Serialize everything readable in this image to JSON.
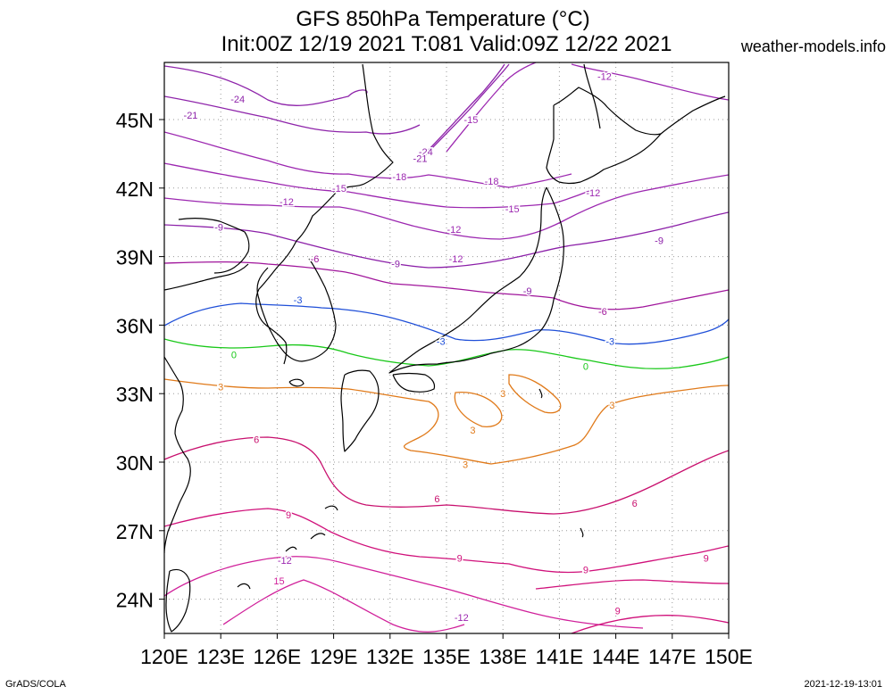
{
  "title": {
    "line1": "GFS 850hPa Temperature (°C)",
    "line2": "Init:00Z 12/19 2021 T:081 Valid:09Z 12/22 2021"
  },
  "site": "weather-models.info",
  "footer": {
    "left": "GrADS/COLA",
    "right": "2021-12-19-13:01"
  },
  "map": {
    "lon_range": [
      120,
      150
    ],
    "lat_range": [
      22.5,
      47.5
    ],
    "x_ticks": [
      "120E",
      "123E",
      "126E",
      "129E",
      "132E",
      "135E",
      "138E",
      "141E",
      "144E",
      "147E",
      "150E"
    ],
    "y_ticks": [
      "24N",
      "27N",
      "30N",
      "33N",
      "36N",
      "39N",
      "42N",
      "45N"
    ],
    "grid": "dotted",
    "colors": {
      "coast": "#000000",
      "c_neg21": "#8e24aa",
      "c_neg12": "#9c27b0",
      "c_neg9": "#8b1fa8",
      "c_neg6": "#a0159b",
      "c_neg3": "#1f4fd8",
      "c_0": "#19c819",
      "c_3": "#e07a1a",
      "c_6": "#c8106e",
      "c_9": "#d0107a",
      "c_12": "#d0209a"
    },
    "contour_labels": [
      {
        "text": "-24",
        "lon": 123.9,
        "lat": 45.9
      },
      {
        "text": "-21",
        "lon": 121.4,
        "lat": 45.2
      },
      {
        "text": "-12",
        "lon": 143.4,
        "lat": 46.9
      },
      {
        "text": "-15",
        "lon": 136.3,
        "lat": 45.0
      },
      {
        "text": "-24",
        "lon": 133.9,
        "lat": 43.6
      },
      {
        "text": "-21",
        "lon": 133.6,
        "lat": 43.3
      },
      {
        "text": "-18",
        "lon": 132.5,
        "lat": 42.5
      },
      {
        "text": "-15",
        "lon": 129.3,
        "lat": 42.0
      },
      {
        "text": "-18",
        "lon": 137.4,
        "lat": 42.3
      },
      {
        "text": "-12",
        "lon": 142.8,
        "lat": 41.8
      },
      {
        "text": "-12",
        "lon": 126.5,
        "lat": 41.4
      },
      {
        "text": "-15",
        "lon": 138.5,
        "lat": 41.1
      },
      {
        "text": "-9",
        "lon": 122.9,
        "lat": 40.3
      },
      {
        "text": "-12",
        "lon": 135.4,
        "lat": 40.2
      },
      {
        "text": "-9",
        "lon": 146.3,
        "lat": 39.7
      },
      {
        "text": "-6",
        "lon": 128.0,
        "lat": 38.9
      },
      {
        "text": "-9",
        "lon": 132.3,
        "lat": 38.7
      },
      {
        "text": "-12",
        "lon": 135.5,
        "lat": 38.9
      },
      {
        "text": "-9",
        "lon": 139.3,
        "lat": 37.5
      },
      {
        "text": "-6",
        "lon": 143.3,
        "lat": 36.6
      },
      {
        "text": "-3",
        "lon": 127.1,
        "lat": 37.1
      },
      {
        "text": "-3",
        "lon": 134.7,
        "lat": 35.3
      },
      {
        "text": "-3",
        "lon": 143.7,
        "lat": 35.3
      },
      {
        "text": "0",
        "lon": 123.7,
        "lat": 34.7
      },
      {
        "text": "0",
        "lon": 142.4,
        "lat": 34.2
      },
      {
        "text": "3",
        "lon": 123.0,
        "lat": 33.3
      },
      {
        "text": "3",
        "lon": 138.0,
        "lat": 33.0
      },
      {
        "text": "3",
        "lon": 143.8,
        "lat": 32.5
      },
      {
        "text": "3",
        "lon": 136.4,
        "lat": 31.4
      },
      {
        "text": "3",
        "lon": 136.0,
        "lat": 29.9
      },
      {
        "text": "6",
        "lon": 124.9,
        "lat": 31.0
      },
      {
        "text": "6",
        "lon": 134.5,
        "lat": 28.4
      },
      {
        "text": "6",
        "lon": 145.0,
        "lat": 28.2
      },
      {
        "text": "9",
        "lon": 126.6,
        "lat": 27.7
      },
      {
        "text": "9",
        "lon": 135.7,
        "lat": 25.8
      },
      {
        "text": "9",
        "lon": 148.8,
        "lat": 25.8
      },
      {
        "text": "9",
        "lon": 142.4,
        "lat": 25.3
      },
      {
        "text": "-12",
        "lon": 126.4,
        "lat": 25.7
      },
      {
        "text": "15",
        "lon": 126.1,
        "lat": 24.8
      },
      {
        "text": "-12",
        "lon": 135.8,
        "lat": 23.2
      },
      {
        "text": "9",
        "lon": 144.1,
        "lat": 23.5
      }
    ]
  }
}
